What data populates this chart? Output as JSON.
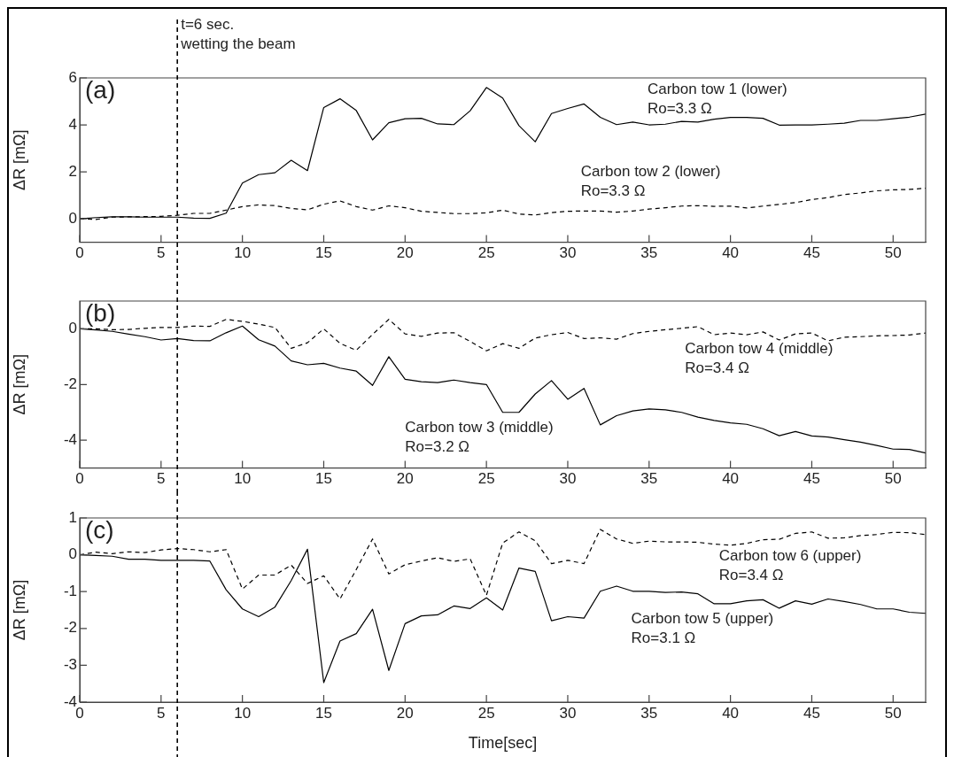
{
  "chart_data": [
    {
      "type": "line",
      "title": "(a)",
      "ylabel": "ΔR [mΩ]",
      "grid": false,
      "x": [
        0,
        1,
        2,
        3,
        4,
        5,
        6,
        7,
        8,
        9,
        10,
        11,
        12,
        13,
        14,
        15,
        16,
        17,
        18,
        19,
        20,
        21,
        22,
        23,
        24,
        25,
        26,
        27,
        28,
        29,
        30,
        31,
        32,
        33,
        34,
        35,
        36,
        37,
        38,
        39,
        40,
        41,
        42,
        43,
        44,
        45,
        46,
        47,
        48,
        49,
        50,
        51,
        52
      ],
      "series": [
        {
          "name": "Carbon tow 1 (lower)",
          "color": "#000000",
          "line_style": "solid",
          "values": [
            0,
            0.05,
            0.08,
            0.08,
            0.07,
            0.07,
            0.07,
            0.03,
            0.02,
            0.24,
            1.52,
            1.88,
            1.96,
            2.49,
            2.05,
            4.74,
            5.11,
            4.61,
            3.36,
            4.09,
            4.26,
            4.28,
            4.04,
            4.01,
            4.6,
            5.59,
            5.14,
            3.97,
            3.28,
            4.48,
            4.7,
            4.89,
            4.32,
            4.01,
            4.12,
            4.0,
            4.03,
            4.15,
            4.12,
            4.24,
            4.32,
            4.32,
            4.28,
            3.99,
            4.0,
            4.0,
            4.03,
            4.07,
            4.19,
            4.19,
            4.26,
            4.33,
            4.46
          ]
        },
        {
          "name": "Carbon tow 2 (lower)",
          "color": "#000000",
          "line_style": "dashed",
          "values": [
            0,
            -0.03,
            0.07,
            0.08,
            0.09,
            0.1,
            0.15,
            0.23,
            0.23,
            0.37,
            0.52,
            0.59,
            0.56,
            0.44,
            0.38,
            0.62,
            0.76,
            0.52,
            0.37,
            0.55,
            0.47,
            0.32,
            0.27,
            0.22,
            0.22,
            0.25,
            0.37,
            0.2,
            0.16,
            0.26,
            0.32,
            0.33,
            0.33,
            0.28,
            0.33,
            0.41,
            0.47,
            0.54,
            0.56,
            0.53,
            0.54,
            0.46,
            0.54,
            0.61,
            0.69,
            0.82,
            0.9,
            1.03,
            1.1,
            1.19,
            1.23,
            1.25,
            1.3
          ]
        }
      ],
      "xlim": [
        0,
        52
      ],
      "xticks": [
        0,
        5,
        10,
        15,
        20,
        25,
        30,
        35,
        40,
        45,
        50
      ],
      "ylim": [
        -1,
        6
      ],
      "yticks": [
        0,
        2,
        4,
        6
      ],
      "ref_lines": [
        {
          "axis": "x",
          "value": 6,
          "label": "t=6 sec.\nwetting the beam",
          "line_style": "dashed"
        }
      ],
      "annotations": [
        "Ro=3.3 Ω",
        "Ro=3.3 Ω"
      ]
    },
    {
      "type": "line",
      "title": "(b)",
      "ylabel": "ΔR [mΩ]",
      "grid": false,
      "x": [
        0,
        1,
        2,
        3,
        4,
        5,
        6,
        7,
        8,
        9,
        10,
        11,
        12,
        13,
        14,
        15,
        16,
        17,
        18,
        19,
        20,
        21,
        22,
        23,
        24,
        25,
        26,
        27,
        28,
        29,
        30,
        31,
        32,
        33,
        34,
        35,
        36,
        37,
        38,
        39,
        40,
        41,
        42,
        43,
        44,
        45,
        46,
        47,
        48,
        49,
        50,
        51,
        52
      ],
      "series": [
        {
          "name": "Carbon tow 3 (middle)",
          "color": "#000000",
          "line_style": "solid",
          "values": [
            0,
            -0.04,
            -0.09,
            -0.19,
            -0.28,
            -0.4,
            -0.35,
            -0.42,
            -0.43,
            -0.14,
            0.1,
            -0.39,
            -0.62,
            -1.15,
            -1.29,
            -1.24,
            -1.41,
            -1.52,
            -2.03,
            -1.0,
            -1.81,
            -1.9,
            -1.93,
            -1.84,
            -1.93,
            -2.0,
            -3.0,
            -3.0,
            -2.34,
            -1.86,
            -2.53,
            -2.14,
            -3.45,
            -3.12,
            -2.95,
            -2.88,
            -2.91,
            -3.0,
            -3.17,
            -3.29,
            -3.38,
            -3.43,
            -3.59,
            -3.84,
            -3.69,
            -3.85,
            -3.89,
            -3.98,
            -4.07,
            -4.19,
            -4.32,
            -4.33,
            -4.46
          ]
        },
        {
          "name": "Carbon tow 4 (middle)",
          "color": "#000000",
          "line_style": "dashed",
          "values": [
            0,
            0,
            -0.03,
            -0.02,
            0.02,
            0.05,
            0.05,
            0.1,
            0.09,
            0.34,
            0.27,
            0.17,
            0.05,
            -0.7,
            -0.5,
            0,
            -0.52,
            -0.77,
            -0.2,
            0.34,
            -0.18,
            -0.27,
            -0.15,
            -0.14,
            -0.45,
            -0.79,
            -0.53,
            -0.7,
            -0.33,
            -0.21,
            -0.13,
            -0.35,
            -0.32,
            -0.37,
            -0.17,
            -0.09,
            -0.03,
            0.02,
            0.08,
            -0.21,
            -0.15,
            -0.21,
            -0.11,
            -0.4,
            -0.18,
            -0.15,
            -0.43,
            -0.3,
            -0.28,
            -0.25,
            -0.24,
            -0.22,
            -0.15
          ]
        }
      ],
      "xlim": [
        0,
        52
      ],
      "xticks": [
        0,
        5,
        10,
        15,
        20,
        25,
        30,
        35,
        40,
        45,
        50
      ],
      "ylim": [
        -5,
        1
      ],
      "yticks": [
        -4,
        -2,
        0
      ],
      "ref_lines": [
        {
          "axis": "x",
          "value": 6,
          "line_style": "dashed"
        }
      ],
      "annotations": [
        "Ro=3.2 Ω",
        "Ro=3.4 Ω"
      ]
    },
    {
      "type": "line",
      "title": "(c)",
      "ylabel": "ΔR [mΩ]",
      "xlabel": "Time[sec]",
      "grid": false,
      "x": [
        0,
        1,
        2,
        3,
        4,
        5,
        6,
        7,
        8,
        9,
        10,
        11,
        12,
        13,
        14,
        15,
        16,
        17,
        18,
        19,
        20,
        21,
        22,
        23,
        24,
        25,
        26,
        27,
        28,
        29,
        30,
        31,
        32,
        33,
        34,
        35,
        36,
        37,
        38,
        39,
        40,
        41,
        42,
        43,
        44,
        45,
        46,
        47,
        48,
        49,
        50,
        51,
        52
      ],
      "series": [
        {
          "name": "Carbon tow 5 (upper)",
          "color": "#000000",
          "line_style": "solid",
          "values": [
            0,
            -0.02,
            -0.04,
            -0.12,
            -0.12,
            -0.15,
            -0.15,
            -0.15,
            -0.17,
            -0.95,
            -1.47,
            -1.68,
            -1.42,
            -0.7,
            0.15,
            -3.47,
            -2.34,
            -2.14,
            -1.48,
            -3.14,
            -1.87,
            -1.66,
            -1.63,
            -1.39,
            -1.46,
            -1.17,
            -1.5,
            -0.36,
            -0.45,
            -1.79,
            -1.68,
            -1.72,
            -0.99,
            -0.85,
            -0.99,
            -0.99,
            -1.02,
            -1.01,
            -1.06,
            -1.33,
            -1.33,
            -1.25,
            -1.22,
            -1.45,
            -1.25,
            -1.34,
            -1.2,
            -1.27,
            -1.35,
            -1.47,
            -1.47,
            -1.56,
            -1.59
          ]
        },
        {
          "name": "Carbon tow 6 (upper)",
          "color": "#000000",
          "line_style": "dashed",
          "values": [
            0,
            0.07,
            0.03,
            0.08,
            0.06,
            0.13,
            0.17,
            0.14,
            0.08,
            0.14,
            -0.93,
            -0.55,
            -0.55,
            -0.28,
            -0.78,
            -0.57,
            -1.2,
            -0.4,
            0.43,
            -0.52,
            -0.27,
            -0.17,
            -0.08,
            -0.18,
            -0.11,
            -1.1,
            0.32,
            0.62,
            0.38,
            -0.24,
            -0.15,
            -0.24,
            0.69,
            0.43,
            0.31,
            0.37,
            0.35,
            0.35,
            0.34,
            0.29,
            0.26,
            0.31,
            0.41,
            0.42,
            0.58,
            0.62,
            0.45,
            0.46,
            0.52,
            0.55,
            0.61,
            0.6,
            0.55
          ]
        }
      ],
      "xlim": [
        0,
        52
      ],
      "xticks": [
        0,
        5,
        10,
        15,
        20,
        25,
        30,
        35,
        40,
        45,
        50
      ],
      "ylim": [
        -4,
        1
      ],
      "yticks": [
        -4,
        -3,
        -2,
        -1,
        0,
        1
      ],
      "ref_lines": [
        {
          "axis": "x",
          "value": 6,
          "line_style": "dashed"
        }
      ],
      "annotations": [
        "Ro=3.1 Ω",
        "Ro=3.4 Ω"
      ]
    }
  ]
}
